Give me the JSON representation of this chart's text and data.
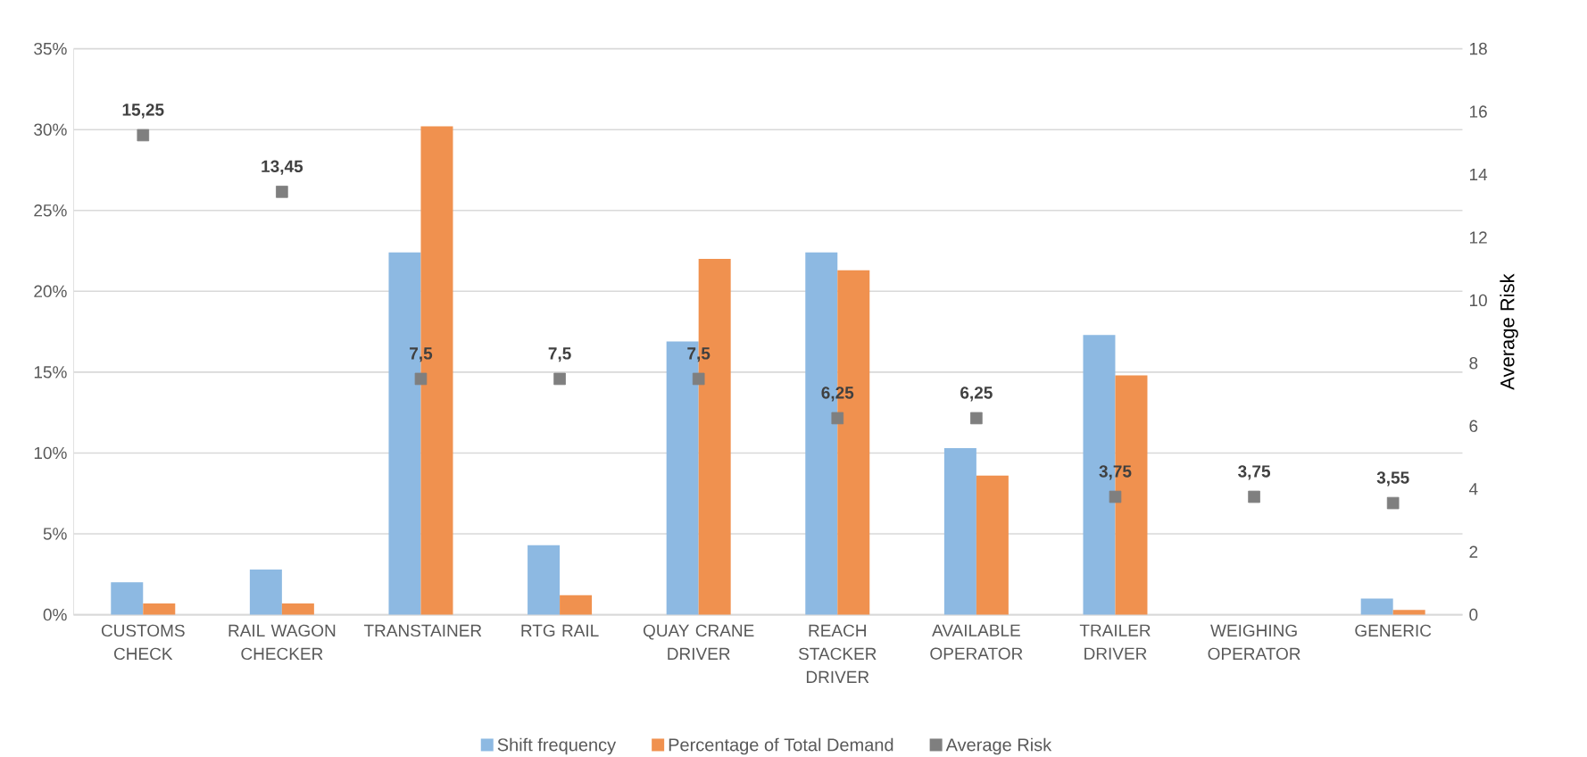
{
  "chart_data": {
    "type": "bar",
    "ylabel": null,
    "y2label": "Average Risk",
    "categories": [
      "CUSTOMS CHECK",
      "RAIL WAGON CHECKER",
      "TRANSTAINER",
      "RTG RAIL",
      "QUAY CRANE DRIVER",
      "REACH STACKER DRIVER",
      "AVAILABLE OPERATOR",
      "TRAILER DRIVER",
      "WEIGHING OPERATOR",
      "GENERIC"
    ],
    "series": [
      {
        "name": "Shift frequency",
        "color": "#8db9e2",
        "values": [
          2.0,
          2.8,
          22.4,
          4.3,
          16.9,
          22.4,
          10.3,
          17.3,
          0,
          1.0
        ]
      },
      {
        "name": "Percentage of Total Demand",
        "color": "#f0914f",
        "values": [
          0.7,
          0.7,
          30.2,
          1.2,
          22.0,
          21.3,
          8.6,
          14.8,
          0,
          0.3
        ]
      },
      {
        "name": "Average Risk",
        "type": "scatter",
        "axis": "y2",
        "color": "#7f7f7f",
        "values": [
          15.25,
          13.45,
          7.5,
          7.5,
          7.5,
          6.25,
          6.25,
          3.75,
          3.75,
          3.55
        ],
        "value_labels": [
          "15,25",
          "13,45",
          "7,5",
          "7,5",
          "7,5",
          "6,25",
          "6,25",
          "3,75",
          "3,75",
          "3,55"
        ]
      }
    ],
    "ylim": [
      0,
      35
    ],
    "yticks": [
      {
        "value": 0,
        "label": "0%"
      },
      {
        "value": 5,
        "label": "5%"
      },
      {
        "value": 10,
        "label": "10%"
      },
      {
        "value": 15,
        "label": "15%"
      },
      {
        "value": 20,
        "label": "20%"
      },
      {
        "value": 25,
        "label": "25%"
      },
      {
        "value": 30,
        "label": "30%"
      },
      {
        "value": 35,
        "label": "35%"
      }
    ],
    "y2lim": [
      0,
      18
    ],
    "y2ticks": [
      0,
      2,
      4,
      6,
      8,
      10,
      12,
      14,
      16,
      18
    ],
    "grid": "y",
    "legend": "bottom",
    "marker": "square"
  }
}
